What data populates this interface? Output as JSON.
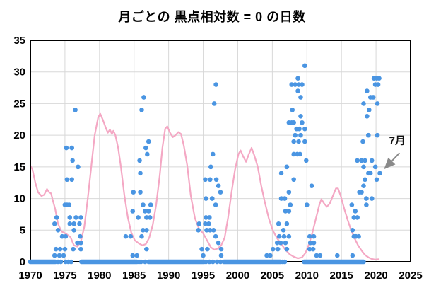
{
  "title": "月ごとの  黒点相対数 = 0  の日数",
  "colors": {
    "dot_blue": "#4a95e2",
    "curve_pink": "#f4a8c4",
    "grid_gray": "#d8d8d8",
    "frame_black": "#000000",
    "arrow_gray": "#8a8a8a"
  },
  "chart_data": {
    "type": "scatter",
    "title": "月ごとの  黒点相対数 = 0  の日数",
    "xlabel": "",
    "ylabel": "",
    "grid": true,
    "x_axis": {
      "min": 1970,
      "max": 2025,
      "ticks": [
        1970,
        1975,
        1980,
        1985,
        1990,
        1995,
        2000,
        2005,
        2010,
        2015,
        2020,
        2025
      ]
    },
    "y_axis": {
      "min": 0,
      "max": 35,
      "ticks": [
        0,
        5,
        10,
        15,
        20,
        25,
        30,
        35
      ]
    },
    "annotation": {
      "label": "7月",
      "label_pos": [
        2021.9,
        18.6
      ],
      "arrow_start": [
        2023.4,
        17.2
      ],
      "arrow_end": [
        2021.3,
        14.8
      ],
      "target_point": [
        2020.55,
        14
      ]
    },
    "series": [
      {
        "name": "monthly-days-with-zero-sunspots",
        "type": "scatter",
        "color": "#4a95e2",
        "dot_radius": 3.3,
        "points": [
          [
            1973.5,
            1
          ],
          [
            1974.2,
            1
          ],
          [
            1974.8,
            1
          ],
          [
            1973.7,
            2
          ],
          [
            1974.3,
            2
          ],
          [
            1975.0,
            2
          ],
          [
            1976.2,
            2
          ],
          [
            1977.3,
            2
          ],
          [
            1976.8,
            3
          ],
          [
            1977.3,
            3
          ],
          [
            1974.6,
            4
          ],
          [
            1975.1,
            4
          ],
          [
            1977.2,
            4
          ],
          [
            1974.0,
            5
          ],
          [
            1976.3,
            5
          ],
          [
            1973.5,
            6
          ],
          [
            1975.7,
            6
          ],
          [
            1976.3,
            6
          ],
          [
            1977.1,
            6
          ],
          [
            1973.8,
            7
          ],
          [
            1975.7,
            7
          ],
          [
            1976.6,
            7
          ],
          [
            1977.3,
            7
          ],
          [
            1975.0,
            9
          ],
          [
            1975.3,
            9
          ],
          [
            1975.6,
            9
          ],
          [
            1975.3,
            13
          ],
          [
            1976.0,
            13
          ],
          [
            1976.9,
            15
          ],
          [
            1976.1,
            16
          ],
          [
            1975.2,
            18
          ],
          [
            1976.0,
            18
          ],
          [
            1976.5,
            24
          ],
          [
            1984.8,
            1
          ],
          [
            1985.4,
            1
          ],
          [
            1986.8,
            2
          ],
          [
            1983.8,
            4
          ],
          [
            1984.5,
            4
          ],
          [
            1986.1,
            4
          ],
          [
            1986.3,
            5
          ],
          [
            1986.8,
            5
          ],
          [
            1985.6,
            7
          ],
          [
            1986.8,
            7
          ],
          [
            1987.3,
            7
          ],
          [
            1984.8,
            8
          ],
          [
            1986.6,
            8
          ],
          [
            1987.1,
            8
          ],
          [
            1986.3,
            9
          ],
          [
            1987.4,
            9
          ],
          [
            1984.9,
            11
          ],
          [
            1985.9,
            11
          ],
          [
            1985.9,
            14
          ],
          [
            1985.8,
            16
          ],
          [
            1986.9,
            17
          ],
          [
            1986.7,
            18
          ],
          [
            1987.1,
            19
          ],
          [
            1986.1,
            24
          ],
          [
            1986.4,
            26
          ],
          [
            1995.0,
            1
          ],
          [
            1997.6,
            1
          ],
          [
            1994.8,
            2
          ],
          [
            1995.6,
            2
          ],
          [
            1997.6,
            2
          ],
          [
            1997.2,
            3
          ],
          [
            1996.8,
            4
          ],
          [
            1994.3,
            5
          ],
          [
            1995.5,
            5
          ],
          [
            1996.0,
            5
          ],
          [
            1996.5,
            5
          ],
          [
            1994.4,
            6
          ],
          [
            1995.3,
            6
          ],
          [
            1995.8,
            6
          ],
          [
            1995.4,
            7
          ],
          [
            1995.9,
            7
          ],
          [
            1996.8,
            9
          ],
          [
            1995.4,
            10
          ],
          [
            1996.3,
            10
          ],
          [
            1997.5,
            11
          ],
          [
            1997.2,
            12
          ],
          [
            1995.3,
            13
          ],
          [
            1996.0,
            13
          ],
          [
            1996.9,
            13
          ],
          [
            1996.1,
            15
          ],
          [
            1996.4,
            17
          ],
          [
            1996.6,
            25
          ],
          [
            1996.85,
            28
          ],
          [
            2004.2,
            1
          ],
          [
            2004.7,
            1
          ],
          [
            2005.1,
            2
          ],
          [
            2005.8,
            2
          ],
          [
            2007.1,
            2
          ],
          [
            2005.7,
            3
          ],
          [
            2006.2,
            3
          ],
          [
            2006.9,
            3
          ],
          [
            2006.0,
            4
          ],
          [
            2006.7,
            4
          ],
          [
            2007.4,
            4
          ],
          [
            2006.6,
            5
          ],
          [
            2005.9,
            6
          ],
          [
            2007.1,
            6
          ],
          [
            2006.9,
            8
          ],
          [
            2007.4,
            8
          ],
          [
            2007.6,
            9
          ],
          [
            2006.3,
            10
          ],
          [
            2006.8,
            10
          ],
          [
            2007.4,
            11
          ],
          [
            2008.1,
            13
          ],
          [
            2006.3,
            14
          ],
          [
            2007.1,
            15
          ],
          [
            2008.1,
            17
          ],
          [
            2008.6,
            17
          ],
          [
            2009.0,
            17
          ],
          [
            2008.1,
            19
          ],
          [
            2008.8,
            19
          ],
          [
            2009.7,
            19
          ],
          [
            2008.3,
            20
          ],
          [
            2009.1,
            20
          ],
          [
            2008.5,
            21
          ],
          [
            2008.9,
            21
          ],
          [
            2009.7,
            21
          ],
          [
            2007.4,
            22
          ],
          [
            2007.8,
            22
          ],
          [
            2008.1,
            22
          ],
          [
            2009.3,
            22
          ],
          [
            2009.1,
            23
          ],
          [
            2007.9,
            24
          ],
          [
            2009.1,
            26
          ],
          [
            2008.7,
            27
          ],
          [
            2007.8,
            28
          ],
          [
            2008.3,
            28
          ],
          [
            2008.8,
            28
          ],
          [
            2009.3,
            28
          ],
          [
            2008.7,
            29
          ],
          [
            2009.7,
            31
          ],
          [
            2009.9,
            16
          ],
          [
            2010.0,
            9
          ],
          [
            2010.7,
            12
          ],
          [
            2010.4,
            4
          ],
          [
            2011.0,
            4
          ],
          [
            2010.5,
            3
          ],
          [
            2011.0,
            3
          ],
          [
            2010.4,
            2
          ],
          [
            2010.9,
            2
          ],
          [
            2011.4,
            1
          ],
          [
            2011.9,
            1
          ],
          [
            2014.4,
            1
          ],
          [
            2016.6,
            1
          ],
          [
            2016.8,
            4
          ],
          [
            2017.1,
            4
          ],
          [
            2017.5,
            4
          ],
          [
            2016.6,
            5
          ],
          [
            2016.8,
            7
          ],
          [
            2017.3,
            7
          ],
          [
            2017.0,
            8
          ],
          [
            2016.5,
            9
          ],
          [
            2018.6,
            9
          ],
          [
            2018.6,
            10
          ],
          [
            2019.4,
            10
          ],
          [
            2017.6,
            11
          ],
          [
            2017.9,
            11
          ],
          [
            2018.2,
            12
          ],
          [
            2018.4,
            13
          ],
          [
            2020.1,
            13
          ],
          [
            2018.9,
            14
          ],
          [
            2019.2,
            14
          ],
          [
            2020.55,
            14
          ],
          [
            2018.2,
            15
          ],
          [
            2019.9,
            15
          ],
          [
            2017.3,
            16
          ],
          [
            2017.9,
            16
          ],
          [
            2018.4,
            16
          ],
          [
            2019.4,
            16
          ],
          [
            2018.1,
            19
          ],
          [
            2018.9,
            20
          ],
          [
            2020.2,
            20
          ],
          [
            2018.7,
            23
          ],
          [
            2019.0,
            24
          ],
          [
            2018.2,
            25
          ],
          [
            2020.2,
            25
          ],
          [
            2019.2,
            26
          ],
          [
            2019.6,
            26
          ],
          [
            2018.7,
            27
          ],
          [
            2019.9,
            28
          ],
          [
            2020.3,
            28
          ],
          [
            2019.7,
            29
          ],
          [
            2020.1,
            29
          ],
          [
            2020.45,
            29
          ]
        ],
        "zero_runs": [
          [
            1970.0,
            1973.6
          ],
          [
            1977.4,
            1985.4
          ],
          [
            1987.1,
            1994.9
          ],
          [
            1998.0,
            2006.2
          ],
          [
            2009.6,
            2018.2
          ]
        ],
        "zero_dots": [
          1974.0,
          1974.4,
          1975.1,
          1975.5,
          1975.9,
          1985.7,
          1986.0,
          1986.6,
          1995.1,
          1995.4,
          1995.9,
          1996.4,
          1997.0,
          1997.5,
          2006.5,
          2006.8
        ]
      },
      {
        "name": "smoothed-sunspot-number-curve",
        "type": "line",
        "color": "#f4a8c4",
        "line_width": 2.2,
        "points": [
          [
            1970.0,
            15.2
          ],
          [
            1970.3,
            14.6
          ],
          [
            1970.7,
            12.6
          ],
          [
            1971.1,
            11.0
          ],
          [
            1971.6,
            10.4
          ],
          [
            1972.0,
            10.6
          ],
          [
            1972.4,
            11.5
          ],
          [
            1972.7,
            11.0
          ],
          [
            1973.0,
            10.8
          ],
          [
            1973.2,
            9.9
          ],
          [
            1973.6,
            8.3
          ],
          [
            1974.0,
            6.0
          ],
          [
            1974.5,
            4.8
          ],
          [
            1975.2,
            4.4
          ],
          [
            1975.8,
            3.9
          ],
          [
            1976.3,
            2.6
          ],
          [
            1976.8,
            2.4
          ],
          [
            1977.3,
            3.2
          ],
          [
            1977.8,
            5.5
          ],
          [
            1978.3,
            10.0
          ],
          [
            1978.8,
            15.0
          ],
          [
            1979.3,
            20.0
          ],
          [
            1979.8,
            22.8
          ],
          [
            1980.1,
            23.4
          ],
          [
            1980.5,
            22.4
          ],
          [
            1980.9,
            21.2
          ],
          [
            1981.2,
            20.4
          ],
          [
            1981.5,
            20.9
          ],
          [
            1981.8,
            20.2
          ],
          [
            1982.0,
            20.7
          ],
          [
            1982.3,
            20.0
          ],
          [
            1982.7,
            18.0
          ],
          [
            1983.1,
            15.0
          ],
          [
            1983.6,
            10.5
          ],
          [
            1984.1,
            7.0
          ],
          [
            1984.6,
            4.6
          ],
          [
            1985.1,
            3.4
          ],
          [
            1985.7,
            2.9
          ],
          [
            1986.2,
            2.6
          ],
          [
            1986.7,
            2.8
          ],
          [
            1987.2,
            3.8
          ],
          [
            1987.7,
            5.8
          ],
          [
            1988.2,
            9.0
          ],
          [
            1988.7,
            13.5
          ],
          [
            1989.1,
            18.0
          ],
          [
            1989.5,
            21.0
          ],
          [
            1989.8,
            21.4
          ],
          [
            1990.2,
            20.4
          ],
          [
            1990.6,
            19.7
          ],
          [
            1991.0,
            20.0
          ],
          [
            1991.4,
            20.5
          ],
          [
            1991.8,
            20.2
          ],
          [
            1992.2,
            18.3
          ],
          [
            1992.7,
            15.2
          ],
          [
            1993.2,
            10.5
          ],
          [
            1993.8,
            6.9
          ],
          [
            1994.4,
            5.2
          ],
          [
            1995.0,
            4.5
          ],
          [
            1995.6,
            3.3
          ],
          [
            1996.1,
            2.3
          ],
          [
            1996.6,
            1.9
          ],
          [
            1997.1,
            2.1
          ],
          [
            1997.6,
            2.6
          ],
          [
            1998.1,
            3.8
          ],
          [
            1998.6,
            7.0
          ],
          [
            1999.1,
            11.0
          ],
          [
            1999.6,
            14.5
          ],
          [
            2000.1,
            17.0
          ],
          [
            2000.4,
            17.6
          ],
          [
            2000.8,
            16.6
          ],
          [
            2001.2,
            15.8
          ],
          [
            2001.6,
            17.0
          ],
          [
            2002.0,
            18.0
          ],
          [
            2002.4,
            16.8
          ],
          [
            2002.9,
            15.0
          ],
          [
            2003.4,
            12.0
          ],
          [
            2003.9,
            9.5
          ],
          [
            2004.5,
            6.8
          ],
          [
            2005.1,
            4.9
          ],
          [
            2005.7,
            3.7
          ],
          [
            2006.3,
            2.8
          ],
          [
            2006.9,
            1.9
          ],
          [
            2007.5,
            1.2
          ],
          [
            2008.1,
            0.8
          ],
          [
            2008.7,
            0.55
          ],
          [
            2009.3,
            0.7
          ],
          [
            2009.8,
            1.4
          ],
          [
            2010.3,
            2.8
          ],
          [
            2010.8,
            4.6
          ],
          [
            2011.3,
            6.8
          ],
          [
            2011.8,
            9.0
          ],
          [
            2012.1,
            9.9
          ],
          [
            2012.5,
            9.2
          ],
          [
            2012.9,
            8.7
          ],
          [
            2013.3,
            9.2
          ],
          [
            2013.8,
            10.5
          ],
          [
            2014.2,
            11.6
          ],
          [
            2014.5,
            11.6
          ],
          [
            2014.9,
            10.4
          ],
          [
            2015.4,
            8.4
          ],
          [
            2015.9,
            6.6
          ],
          [
            2016.4,
            5.0
          ],
          [
            2016.9,
            3.7
          ],
          [
            2017.4,
            2.6
          ],
          [
            2017.9,
            1.8
          ],
          [
            2018.4,
            1.1
          ],
          [
            2018.9,
            0.7
          ],
          [
            2019.4,
            0.45
          ],
          [
            2019.9,
            0.35
          ],
          [
            2020.4,
            0.4
          ]
        ]
      }
    ]
  }
}
